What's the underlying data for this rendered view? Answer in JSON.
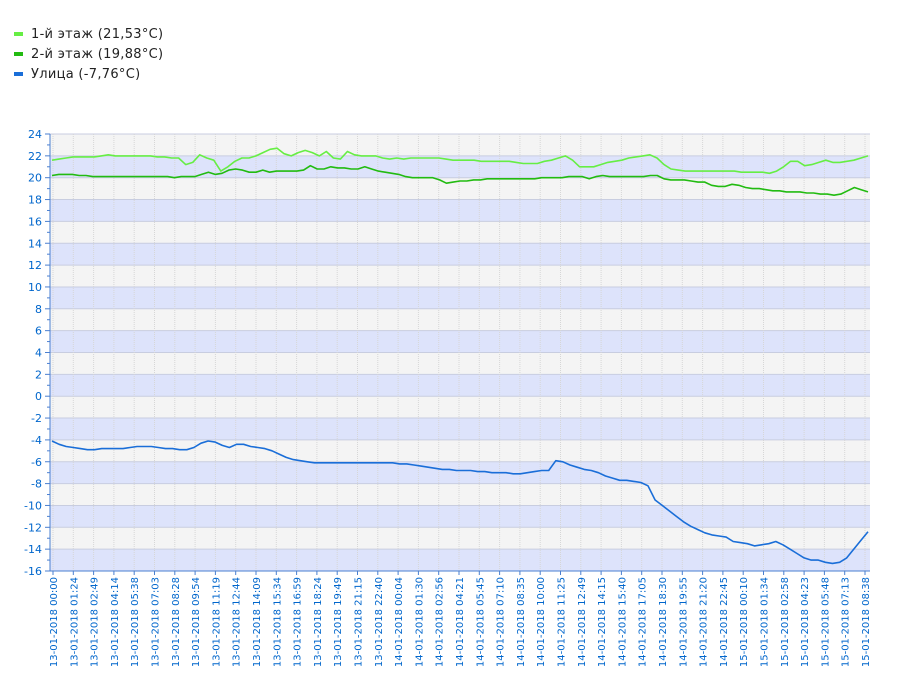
{
  "legend": [
    {
      "label": "1-й этаж (21,53°C)",
      "color": "#66ee44"
    },
    {
      "label": "2-й этаж (19,88°C)",
      "color": "#22bb11"
    },
    {
      "label": "Улица (-7,76°C)",
      "color": "#1a6ed8"
    }
  ],
  "chart_data": {
    "type": "line",
    "ylim": [
      -16,
      24
    ],
    "yticks": [
      24,
      22,
      20,
      18,
      16,
      14,
      12,
      10,
      8,
      6,
      4,
      2,
      0,
      -2,
      -4,
      -6,
      -8,
      -10,
      -12,
      -14,
      -16
    ],
    "grid": true,
    "legend_position": "top-left",
    "x_tick_labels": [
      "13-01-2018 00:00",
      "13-01-2018 01:24",
      "13-01-2018 02:49",
      "13-01-2018 04:14",
      "13-01-2018 05:38",
      "13-01-2018 07:03",
      "13-01-2018 08:28",
      "13-01-2018 09:54",
      "13-01-2018 11:19",
      "13-01-2018 12:44",
      "13-01-2018 14:09",
      "13-01-2018 15:34",
      "13-01-2018 16:59",
      "13-01-2018 18:24",
      "13-01-2018 19:49",
      "13-01-2018 21:15",
      "13-01-2018 22:40",
      "14-01-2018 00:04",
      "14-01-2018 01:30",
      "14-01-2018 02:56",
      "14-01-2018 04:21",
      "14-01-2018 05:45",
      "14-01-2018 07:10",
      "14-01-2018 08:35",
      "14-01-2018 10:00",
      "14-01-2018 11:25",
      "14-01-2018 12:49",
      "14-01-2018 14:15",
      "14-01-2018 15:40",
      "14-01-2018 17:05",
      "14-01-2018 18:30",
      "14-01-2018 19:55",
      "14-01-2018 21:20",
      "14-01-2018 22:45",
      "15-01-2018 00:10",
      "15-01-2018 01:34",
      "15-01-2018 02:58",
      "15-01-2018 04:23",
      "15-01-2018 05:48",
      "15-01-2018 07:13",
      "15-01-2018 08:38"
    ],
    "series": [
      {
        "name": "1-й этаж (21,53°C)",
        "color": "#66ee44",
        "values": [
          21.6,
          21.7,
          21.8,
          21.9,
          21.9,
          21.9,
          21.9,
          22.0,
          22.1,
          22.0,
          22.0,
          22.0,
          22.0,
          22.0,
          22.0,
          21.9,
          21.9,
          21.8,
          21.8,
          21.2,
          21.4,
          22.1,
          21.8,
          21.6,
          20.6,
          21.0,
          21.5,
          21.8,
          21.8,
          22.0,
          22.3,
          22.6,
          22.7,
          22.2,
          22.0,
          22.3,
          22.5,
          22.3,
          22.0,
          22.4,
          21.8,
          21.7,
          22.4,
          22.1,
          22.0,
          22.0,
          22.0,
          21.8,
          21.7,
          21.8,
          21.7,
          21.8,
          21.8,
          21.8,
          21.8,
          21.8,
          21.7,
          21.6,
          21.6,
          21.6,
          21.6,
          21.5,
          21.5,
          21.5,
          21.5,
          21.5,
          21.4,
          21.3,
          21.3,
          21.3,
          21.5,
          21.6,
          21.8,
          22.0,
          21.6,
          21.0,
          21.0,
          21.0,
          21.2,
          21.4,
          21.5,
          21.6,
          21.8,
          21.9,
          22.0,
          22.1,
          21.8,
          21.2,
          20.8,
          20.7,
          20.6,
          20.6,
          20.6,
          20.6,
          20.6,
          20.6,
          20.6,
          20.6,
          20.5,
          20.5,
          20.5,
          20.5,
          20.4,
          20.6,
          21.0,
          21.5,
          21.5,
          21.1,
          21.2,
          21.4,
          21.6,
          21.4,
          21.4,
          21.5,
          21.6,
          21.8,
          22.0
        ]
      },
      {
        "name": "2-й этаж (19,88°C)",
        "color": "#22bb11",
        "values": [
          20.2,
          20.3,
          20.3,
          20.3,
          20.2,
          20.2,
          20.1,
          20.1,
          20.1,
          20.1,
          20.1,
          20.1,
          20.1,
          20.1,
          20.1,
          20.1,
          20.1,
          20.1,
          20.0,
          20.1,
          20.1,
          20.1,
          20.3,
          20.5,
          20.3,
          20.4,
          20.7,
          20.8,
          20.7,
          20.5,
          20.5,
          20.7,
          20.5,
          20.6,
          20.6,
          20.6,
          20.6,
          20.7,
          21.1,
          20.8,
          20.8,
          21.0,
          20.9,
          20.9,
          20.8,
          20.8,
          21.0,
          20.8,
          20.6,
          20.5,
          20.4,
          20.3,
          20.1,
          20.0,
          20.0,
          20.0,
          20.0,
          19.8,
          19.5,
          19.6,
          19.7,
          19.7,
          19.8,
          19.8,
          19.9,
          19.9,
          19.9,
          19.9,
          19.9,
          19.9,
          19.9,
          19.9,
          20.0,
          20.0,
          20.0,
          20.0,
          20.1,
          20.1,
          20.1,
          19.9,
          20.1,
          20.2,
          20.1,
          20.1,
          20.1,
          20.1,
          20.1,
          20.1,
          20.2,
          20.2,
          19.9,
          19.8,
          19.8,
          19.8,
          19.7,
          19.6,
          19.6,
          19.3,
          19.2,
          19.2,
          19.4,
          19.3,
          19.1,
          19.0,
          19.0,
          18.9,
          18.8,
          18.8,
          18.7,
          18.7,
          18.7,
          18.6,
          18.6,
          18.5,
          18.5,
          18.4,
          18.5,
          18.8,
          19.1,
          18.9,
          18.7
        ]
      },
      {
        "name": "Улица (-7,76°C)",
        "color": "#1a6ed8",
        "values": [
          -4.1,
          -4.4,
          -4.6,
          -4.7,
          -4.8,
          -4.9,
          -4.9,
          -4.8,
          -4.8,
          -4.8,
          -4.8,
          -4.7,
          -4.6,
          -4.6,
          -4.6,
          -4.7,
          -4.8,
          -4.8,
          -4.9,
          -4.9,
          -4.7,
          -4.3,
          -4.1,
          -4.2,
          -4.5,
          -4.7,
          -4.4,
          -4.4,
          -4.6,
          -4.7,
          -4.8,
          -5.0,
          -5.3,
          -5.6,
          -5.8,
          -5.9,
          -6.0,
          -6.1,
          -6.1,
          -6.1,
          -6.1,
          -6.1,
          -6.1,
          -6.1,
          -6.1,
          -6.1,
          -6.1,
          -6.1,
          -6.1,
          -6.2,
          -6.2,
          -6.3,
          -6.4,
          -6.5,
          -6.6,
          -6.7,
          -6.7,
          -6.8,
          -6.8,
          -6.8,
          -6.9,
          -6.9,
          -7.0,
          -7.0,
          -7.0,
          -7.1,
          -7.1,
          -7.0,
          -6.9,
          -6.8,
          -6.8,
          -5.9,
          -6.0,
          -6.3,
          -6.5,
          -6.7,
          -6.8,
          -7.0,
          -7.3,
          -7.5,
          -7.7,
          -7.7,
          -7.8,
          -7.9,
          -8.2,
          -9.5,
          -10.0,
          -10.5,
          -11.0,
          -11.5,
          -11.9,
          -12.2,
          -12.5,
          -12.7,
          -12.8,
          -12.9,
          -13.3,
          -13.4,
          -13.5,
          -13.7,
          -13.6,
          -13.5,
          -13.3,
          -13.6,
          -14.0,
          -14.4,
          -14.8,
          -15.0,
          -15.0,
          -15.2,
          -15.3,
          -15.2,
          -14.8,
          -14.0,
          -13.2,
          -12.4
        ]
      }
    ]
  }
}
